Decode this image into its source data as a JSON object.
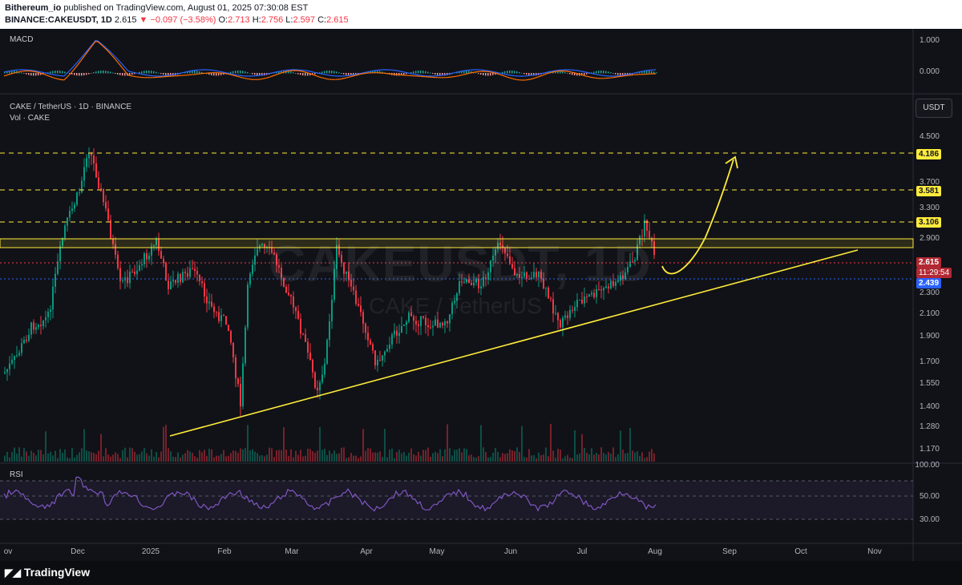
{
  "header": {
    "author": "Bithereum_io",
    "published_text": "published on TradingView.com, August 01, 2025 07:30:08 EST",
    "symbol": "BINANCE:CAKEUSDT, 1D",
    "last": "2.615",
    "change": "−0.097 (−3.58%)",
    "o_label": "O:",
    "o_val": "2.713",
    "h_label": "H:",
    "h_val": "2.756",
    "l_label": "L:",
    "l_val": "2.597",
    "c_label": "C:",
    "c_val": "2.615"
  },
  "panes": {
    "macd_label": "MACD",
    "main_title": "CAKE / TetherUS · 1D · BINANCE",
    "vol_label": "Vol · CAKE",
    "rsi_label": "RSI",
    "watermark": "CAKEUSDT, 1D",
    "watermark_sub": "CAKE / TetherUS"
  },
  "currency_button": "USDT",
  "macd_axis": [
    "1.000",
    "0.000"
  ],
  "price_axis": [
    "4.500",
    "3.700",
    "3.300",
    "2.900",
    "2.300",
    "2.100",
    "1.900",
    "1.700",
    "1.550",
    "1.400",
    "1.280",
    "1.170"
  ],
  "rsi_axis": [
    "100.00",
    "50.00",
    "30.00"
  ],
  "price_tags": {
    "level1": "4.186",
    "level2": "3.581",
    "level3": "3.106",
    "current": "2.615",
    "countdown": "11:29:54",
    "prev": "2.439"
  },
  "time_axis": [
    "ov",
    "Dec",
    "2025",
    "Feb",
    "Mar",
    "Apr",
    "May",
    "Jun",
    "Jul",
    "Aug",
    "Sep",
    "Oct",
    "Nov"
  ],
  "footer_brand": "TradingView",
  "colors": {
    "up": "#089981",
    "down": "#f23645",
    "accent_yellow": "#ffeb3b",
    "rsi_line": "#7e57c2"
  },
  "icons": [
    "tradingview-logo-icon"
  ]
}
